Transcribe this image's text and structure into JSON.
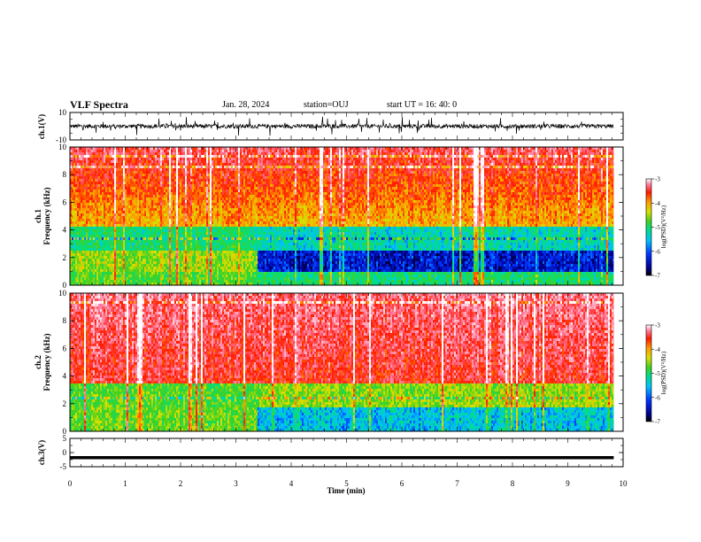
{
  "header": {
    "title": "VLF Spectra",
    "date": "Jan. 28, 2024",
    "station": "station=OUJ",
    "start": "start  UT =   16: 40: 0"
  },
  "chart_data": [
    {
      "type": "line",
      "panel": "ch1-waveform",
      "ylabel": "ch.1(V)",
      "ylim": [
        -10,
        10
      ],
      "yticks": [
        10,
        -10
      ],
      "xlim": [
        0,
        10
      ],
      "xmax_data": 9.83,
      "baseline": 0,
      "noise_amplitude": 1.5,
      "spike_amplitude": 4
    },
    {
      "type": "heatmap",
      "panel": "ch1-spectrogram",
      "ylabel_line1": "ch.1",
      "ylabel_line2": "Frequency (kHz)",
      "ylim": [
        0,
        10
      ],
      "yticks": [
        0,
        2,
        4,
        6,
        8,
        10
      ],
      "xlim": [
        0,
        10
      ],
      "xmax_data": 9.83,
      "change_time": 3.37,
      "colorbar": {
        "label": "log(PSD)(V²/Hz)",
        "range": [
          -7,
          -3
        ],
        "ticks": [
          "-3",
          "-4",
          "-5",
          "-6",
          "-7"
        ]
      }
    },
    {
      "type": "heatmap",
      "panel": "ch2-spectrogram",
      "ylabel_line1": "ch.2",
      "ylabel_line2": "Frequency (kHz)",
      "ylim": [
        0,
        10
      ],
      "yticks": [
        0,
        2,
        4,
        6,
        8,
        10
      ],
      "xlim": [
        0,
        10
      ],
      "xmax_data": 9.83,
      "change_time": 3.37,
      "colorbar": {
        "label": "log(PSD)(V²/Hz)",
        "range": [
          -7,
          -3
        ],
        "ticks": [
          "-3",
          "-4",
          "-5",
          "-6",
          "-7"
        ]
      }
    },
    {
      "type": "line",
      "panel": "ch3-waveform",
      "ylabel": "ch.3(V)",
      "ylim": [
        -5,
        5
      ],
      "yticks": [
        5,
        0,
        -5
      ],
      "xlim": [
        0,
        10
      ],
      "xmax_data": 9.83,
      "baseline": -1.8
    }
  ],
  "xaxis": {
    "label": "Time (min)",
    "ticks": [
      "0",
      "1",
      "2",
      "3",
      "4",
      "5",
      "6",
      "7",
      "8",
      "9",
      "10"
    ]
  }
}
